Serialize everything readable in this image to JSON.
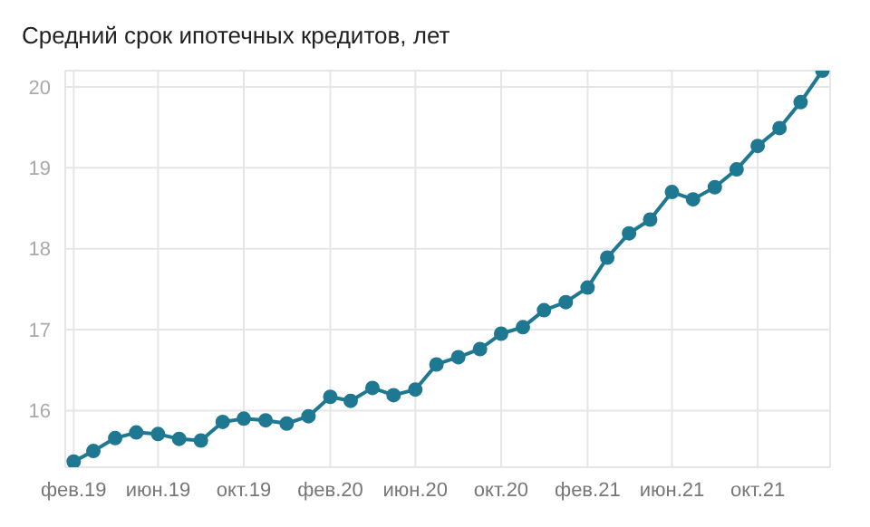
{
  "chart_data": {
    "type": "line",
    "title": "Средний срок ипотечных кредитов, лет",
    "x": [
      "2019-02",
      "2019-03",
      "2019-04",
      "2019-05",
      "2019-06",
      "2019-07",
      "2019-08",
      "2019-09",
      "2019-10",
      "2019-11",
      "2019-12",
      "2020-01",
      "2020-02",
      "2020-03",
      "2020-04",
      "2020-05",
      "2020-06",
      "2020-07",
      "2020-08",
      "2020-09",
      "2020-10",
      "2020-11",
      "2020-12",
      "2021-01",
      "2021-02",
      "2021-03",
      "2021-04",
      "2021-05",
      "2021-06",
      "2021-07",
      "2021-08",
      "2021-09",
      "2021-10",
      "2021-11",
      "2021-12",
      "2022-01"
    ],
    "series": [
      {
        "color": "#1f7891",
        "values": [
          15.37,
          15.5,
          15.66,
          15.73,
          15.71,
          15.65,
          15.63,
          15.86,
          15.9,
          15.88,
          15.84,
          15.93,
          16.17,
          16.12,
          16.28,
          16.19,
          16.26,
          16.57,
          16.66,
          16.76,
          16.95,
          17.03,
          17.24,
          17.34,
          17.52,
          17.89,
          18.19,
          18.36,
          18.7,
          18.61,
          18.76,
          18.98,
          19.27,
          19.49,
          19.81,
          20.2
        ]
      }
    ],
    "xlim": [
      "2019-01-20",
      "2022-01-12"
    ],
    "xticks": [
      {
        "value": "2019-02",
        "label": "фев.19"
      },
      {
        "value": "2019-06",
        "label": "июн.19"
      },
      {
        "value": "2019-10",
        "label": "окт.19"
      },
      {
        "value": "2020-02",
        "label": "фев.20"
      },
      {
        "value": "2020-06",
        "label": "июн.20"
      },
      {
        "value": "2020-10",
        "label": "окт.20"
      },
      {
        "value": "2021-02",
        "label": "фев.21"
      },
      {
        "value": "2021-06",
        "label": "июн.21"
      },
      {
        "value": "2021-10",
        "label": "окт.21"
      }
    ],
    "ylim": [
      15.3,
      20.2
    ],
    "yticks": [
      16,
      17,
      18,
      19,
      20
    ],
    "grid": true,
    "legend": false,
    "marker": "circle",
    "line_style": "solid"
  }
}
